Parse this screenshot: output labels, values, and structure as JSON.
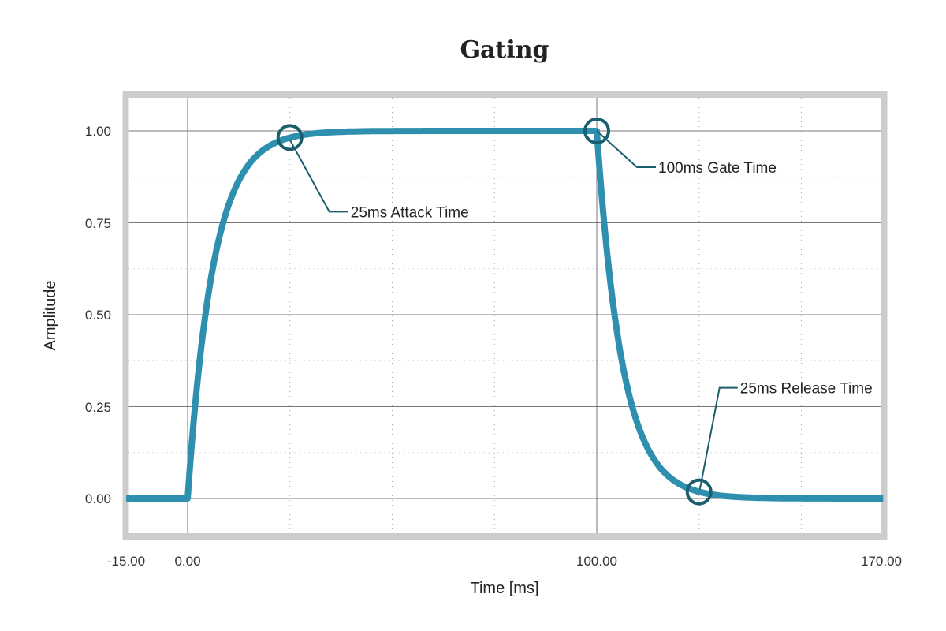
{
  "chart_data": {
    "type": "line",
    "title": "Gating",
    "xlabel": "Time [ms]",
    "ylabel": "Amplitude",
    "xlim": [
      -15,
      170
    ],
    "ylim": [
      -0.1,
      1.1
    ],
    "x_ticks": [
      "-15.00",
      "0.00",
      "100.00",
      "170.00"
    ],
    "y_ticks": [
      "0.00",
      "0.25",
      "0.50",
      "0.75",
      "1.00"
    ],
    "grid": true,
    "series": [
      {
        "color": "#2e8fae",
        "description_points": {
          "x": [
            -15,
            0,
            5,
            10,
            15,
            20,
            25,
            40,
            60,
            100,
            100,
            105,
            110,
            115,
            120,
            125,
            140,
            170
          ],
          "y": [
            0,
            0,
            0.55,
            0.8,
            0.91,
            0.96,
            0.98,
            1.0,
            1.0,
            1.0,
            1.0,
            0.45,
            0.2,
            0.09,
            0.04,
            0.02,
            0.0,
            0.0
          ]
        }
      }
    ],
    "annotations": [
      {
        "text": "25ms Attack Time",
        "x": 25,
        "y": 0.982
      },
      {
        "text": "100ms Gate Time",
        "x": 100,
        "y": 1.0
      },
      {
        "text": "25ms Release Time",
        "x": 125,
        "y": 0.018
      }
    ],
    "annotation_color": "#1b5e6e",
    "frame_color": "#cccccc"
  }
}
